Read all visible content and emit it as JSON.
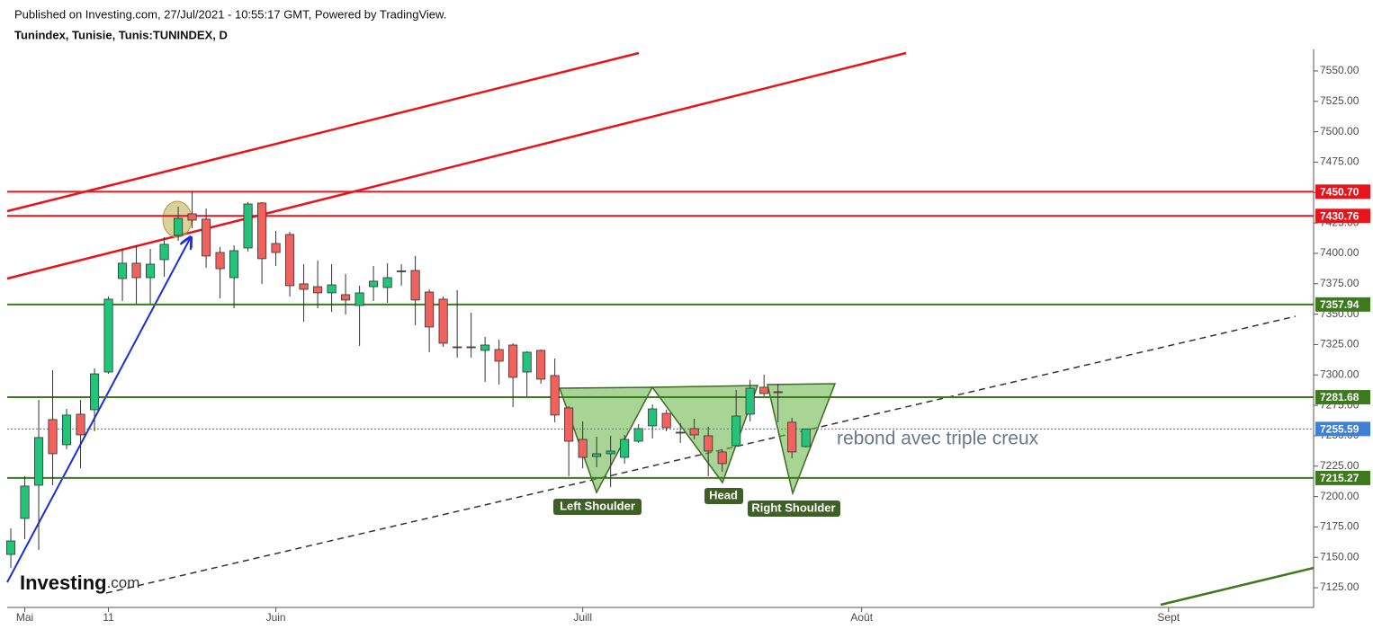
{
  "header": {
    "published": "Published on Investing.com, 27/Jul/2021 - 10:55:17 GMT, Powered by TradingView.",
    "logo": "Investing",
    "logo_suffix": ".com"
  },
  "chart_data": {
    "type": "candlestick",
    "title": "Tunindex, Tunisie, Tunis:TUNINDEX, D",
    "open": [
      7152.4,
      7182.0,
      7209.3,
      7263.3,
      7242.6,
      7267.7,
      7271.4,
      7302.4,
      7379.3,
      7391.9,
      7380.0,
      7394.8,
      7414.8,
      7432.5,
      7428.1,
      7400.7,
      7380.0,
      7404.4,
      7441.4,
      7408.1,
      7415.5,
      7374.9,
      7372.6,
      7367.5,
      7366.0,
      7357.1,
      7372.6,
      7371.9,
      7385.2,
      7385.9,
      7368.2,
      7362.3,
      7323.1,
      7323.1,
      7320.2,
      7320.9,
      7324.6,
      7302.4,
      7320.2,
      7299.5,
      7272.9,
      7247.0,
      7232.9,
      7235.2,
      7232.2,
      7245.5,
      7258.1,
      7268.4,
      7252.9,
      7255.9,
      7250.0,
      7236.7,
      7241.8,
      7267.7,
      7289.9,
      7286.2,
      7261.1,
      7241.1
    ],
    "high": [
      7173.8,
      7216.7,
      7279.5,
      7303.9,
      7272.1,
      7279.5,
      7305.4,
      7364.5,
      7403.7,
      7406.6,
      7403.7,
      7413.3,
      7438.4,
      7451.0,
      7436.9,
      7405.2,
      7406.6,
      7442.1,
      7442.1,
      7418.5,
      7417.7,
      7391.1,
      7394.1,
      7391.1,
      7383.0,
      7373.4,
      7389.6,
      7391.9,
      7391.1,
      7397.8,
      7370.4,
      7364.5,
      7369.7,
      7351.2,
      7331.3,
      7329.0,
      7326.1,
      7319.4,
      7320.9,
      7313.5,
      7274.4,
      7261.8,
      7249.2,
      7250.0,
      7250.7,
      7259.6,
      7275.8,
      7271.4,
      7260.3,
      7264.0,
      7257.4,
      7238.9,
      7287.7,
      7295.8,
      7300.2,
      7292.8,
      7264.8,
      7255.9
    ],
    "low": [
      7141.3,
      7165.0,
      7156.1,
      7209.3,
      7238.9,
      7223.4,
      7253.7,
      7300.9,
      7360.8,
      7358.6,
      7358.6,
      7380.8,
      7410.3,
      7420.7,
      7388.2,
      7363.0,
      7354.9,
      7401.5,
      7374.9,
      7389.6,
      7364.5,
      7343.8,
      7354.9,
      7351.9,
      7349.7,
      7323.9,
      7360.8,
      7359.3,
      7373.4,
      7340.9,
      7318.7,
      7323.1,
      7314.3,
      7314.3,
      7294.3,
      7292.1,
      7273.6,
      7282.5,
      7292.8,
      7261.1,
      7216.7,
      7223.4,
      7224.1,
      7207.8,
      7227.1,
      7244.1,
      7247.8,
      7253.7,
      7244.1,
      7247.0,
      7216.7,
      7220.4,
      7241.1,
      7261.8,
      7282.5,
      7261.1,
      7231.5,
      7240.4
    ],
    "close": [
      7163.5,
      7208.6,
      7248.5,
      7235.2,
      7267.0,
      7250.7,
      7300.9,
      7362.3,
      7391.9,
      7380.0,
      7391.1,
      7407.4,
      7428.8,
      7427.3,
      7397.8,
      7387.4,
      7402.2,
      7440.6,
      7395.6,
      7400.7,
      7373.4,
      7370.4,
      7367.5,
      7374.1,
      7361.6,
      7367.5,
      7377.1,
      7380.0,
      7385.6,
      7361.6,
      7339.4,
      7326.1,
      7322.8,
      7322.8,
      7324.6,
      7311.3,
      7298.0,
      7318.7,
      7296.5,
      7267.0,
      7245.5,
      7232.2,
      7235.2,
      7237.4,
      7247.0,
      7255.9,
      7272.1,
      7256.6,
      7252.2,
      7250.7,
      7237.4,
      7227.1,
      7266.2,
      7289.1,
      7284.7,
      7285.4,
      7236.7,
      7255.59
    ],
    "up_color": "#22c47a",
    "down_color": "#f0625d",
    "ylim": [
      7108.8,
      7567.7
    ],
    "yticks": [
      {
        "value": 7125,
        "label": "7125.00"
      },
      {
        "value": 7150,
        "label": "7150.00"
      },
      {
        "value": 7175,
        "label": "7175.00"
      },
      {
        "value": 7200,
        "label": "7200.00"
      },
      {
        "value": 7225,
        "label": "7225.00"
      },
      {
        "value": 7250,
        "label": "7250.00"
      },
      {
        "value": 7275,
        "label": "7275.00"
      },
      {
        "value": 7300,
        "label": "7300.00"
      },
      {
        "value": 7325,
        "label": "7325.00"
      },
      {
        "value": 7350,
        "label": "7350.00"
      },
      {
        "value": 7375,
        "label": "7375.00"
      },
      {
        "value": 7400,
        "label": "7400.00"
      },
      {
        "value": 7425,
        "label": "7425.00"
      },
      {
        "value": 7450,
        "label": "7450.00"
      },
      {
        "value": 7475,
        "label": "7475.00"
      },
      {
        "value": 7500,
        "label": "7500.00"
      },
      {
        "value": 7525,
        "label": "7525.00"
      },
      {
        "value": 7550,
        "label": "7550.00"
      }
    ],
    "xlim": [
      -0.26,
      93.4
    ],
    "xticks": [
      {
        "value": 1,
        "label": "Mai"
      },
      {
        "value": 7,
        "label": "11"
      },
      {
        "value": 19,
        "label": "Juin"
      },
      {
        "value": 41,
        "label": "Juill"
      },
      {
        "value": 61,
        "label": "Août"
      },
      {
        "value": 83,
        "label": "Sept"
      }
    ],
    "levels": [
      {
        "value": 7450.7,
        "label": "7450.70",
        "color": "#e8141b"
      },
      {
        "value": 7430.76,
        "color": "#e8141b"
      },
      {
        "value": 7357.94,
        "color": "#3d7a1e"
      },
      {
        "value": 7281.68,
        "color": "#3d7a1e"
      },
      {
        "value": 7215.27,
        "color": "#3d7a1e"
      },
      {
        "value": 7255.59,
        "color": "#3f7fd6",
        "dotted": true
      }
    ],
    "annotations": [
      "rebond avec triple creux",
      "Left Shoulder",
      "Head",
      "Right Shoulder"
    ]
  }
}
